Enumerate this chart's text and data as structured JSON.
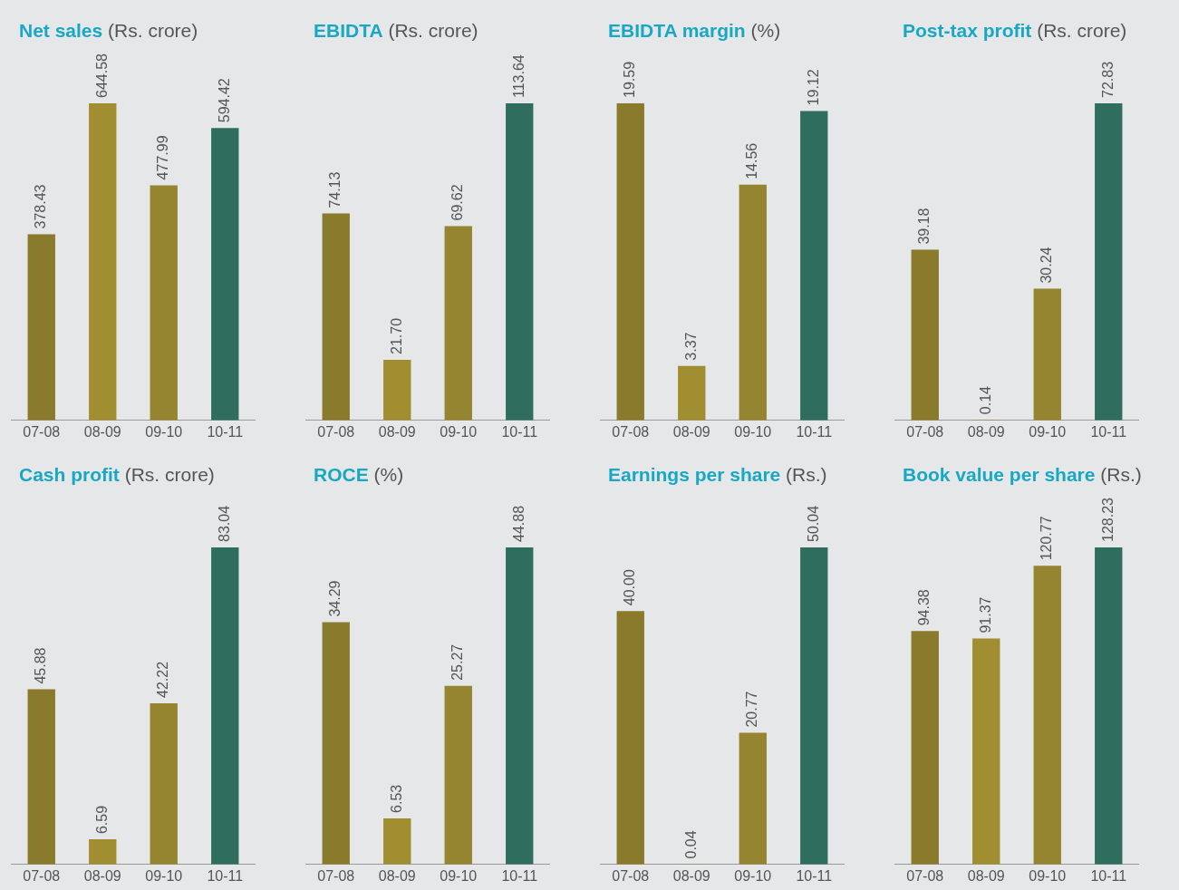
{
  "chart_data": [
    {
      "type": "bar",
      "title": "Net sales",
      "subtitle": "(Rs. crore)",
      "categories": [
        "07-08",
        "08-09",
        "09-10",
        "10-11"
      ],
      "values": [
        378.43,
        644.58,
        477.99,
        594.42
      ],
      "value_labels": [
        "378.43",
        "644.58",
        "477.99",
        "594.42"
      ],
      "colors": [
        "#8a7a2c",
        "#a08e30",
        "#958430",
        "#2f6e5e"
      ],
      "grid": false,
      "legend": false,
      "tick_labels": "x"
    },
    {
      "type": "bar",
      "title": "EBIDTA",
      "subtitle": "(Rs. crore)",
      "categories": [
        "07-08",
        "08-09",
        "09-10",
        "10-11"
      ],
      "values": [
        74.13,
        21.7,
        69.62,
        113.64
      ],
      "value_labels": [
        "74.13",
        "21.70",
        "69.62",
        "113.64"
      ],
      "colors": [
        "#8a7a2c",
        "#a08e30",
        "#958430",
        "#2f6e5e"
      ],
      "grid": false,
      "legend": false,
      "tick_labels": "x"
    },
    {
      "type": "bar",
      "title": "EBIDTA margin",
      "subtitle": "(%)",
      "categories": [
        "07-08",
        "08-09",
        "09-10",
        "10-11"
      ],
      "values": [
        19.59,
        3.37,
        14.56,
        19.12
      ],
      "value_labels": [
        "19.59",
        "3.37",
        "14.56",
        "19.12"
      ],
      "colors": [
        "#8a7a2c",
        "#a08e30",
        "#958430",
        "#2f6e5e"
      ],
      "grid": false,
      "legend": false,
      "tick_labels": "x"
    },
    {
      "type": "bar",
      "title": "Post-tax profit",
      "subtitle": "(Rs. crore)",
      "categories": [
        "07-08",
        "08-09",
        "09-10",
        "10-11"
      ],
      "values": [
        39.18,
        0.14,
        30.24,
        72.83
      ],
      "value_labels": [
        "39.18",
        "0.14",
        "30.24",
        "72.83"
      ],
      "colors": [
        "#8a7a2c",
        "#a08e30",
        "#958430",
        "#2f6e5e"
      ],
      "grid": false,
      "legend": false,
      "tick_labels": "x"
    },
    {
      "type": "bar",
      "title": "Cash profit",
      "subtitle": "(Rs. crore)",
      "categories": [
        "07-08",
        "08-09",
        "09-10",
        "10-11"
      ],
      "values": [
        45.88,
        6.59,
        42.22,
        83.04
      ],
      "value_labels": [
        "45.88",
        "6.59",
        "42.22",
        "83.04"
      ],
      "colors": [
        "#8a7a2c",
        "#a08e30",
        "#958430",
        "#2f6e5e"
      ],
      "grid": false,
      "legend": false,
      "tick_labels": "x"
    },
    {
      "type": "bar",
      "title": "ROCE",
      "subtitle": "(%)",
      "categories": [
        "07-08",
        "08-09",
        "09-10",
        "10-11"
      ],
      "values": [
        34.29,
        6.53,
        25.27,
        44.88
      ],
      "value_labels": [
        "34.29",
        "6.53",
        "25.27",
        "44.88"
      ],
      "colors": [
        "#8a7a2c",
        "#a08e30",
        "#958430",
        "#2f6e5e"
      ],
      "grid": false,
      "legend": false,
      "tick_labels": "x"
    },
    {
      "type": "bar",
      "title": "Earnings per share",
      "subtitle": "(Rs.)",
      "categories": [
        "07-08",
        "08-09",
        "09-10",
        "10-11"
      ],
      "values": [
        40.0,
        0.04,
        20.77,
        50.04
      ],
      "value_labels": [
        "40.00",
        "0.04",
        "20.77",
        "50.04"
      ],
      "colors": [
        "#8a7a2c",
        "#a08e30",
        "#958430",
        "#2f6e5e"
      ],
      "grid": false,
      "legend": false,
      "tick_labels": "x"
    },
    {
      "type": "bar",
      "title": "Book value per share",
      "subtitle": "(Rs.)",
      "categories": [
        "07-08",
        "08-09",
        "09-10",
        "10-11"
      ],
      "values": [
        94.38,
        91.37,
        120.77,
        128.23
      ],
      "value_labels": [
        "94.38",
        "91.37",
        "120.77",
        "128.23"
      ],
      "colors": [
        "#8a7a2c",
        "#a08e30",
        "#958430",
        "#2f6e5e"
      ],
      "grid": false,
      "legend": false,
      "tick_labels": "x"
    }
  ]
}
